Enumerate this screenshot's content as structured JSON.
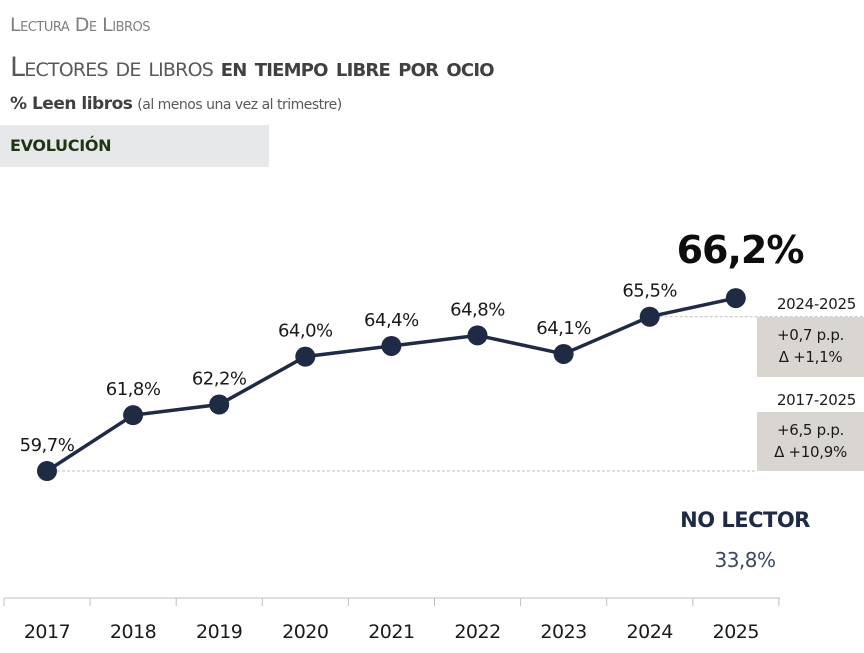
{
  "header": {
    "kicker": "Lectura De Libros",
    "title_light": "Lectores de libros",
    "title_bold": "en tiempo libre por ocio",
    "subtitle_bold": "% Leen libros",
    "subtitle_note": "(al menos una vez al trimestre)",
    "section": "EVOLUCIÓN"
  },
  "chart_data": {
    "type": "line",
    "title": "",
    "xlabel": "",
    "ylabel": "",
    "categories": [
      "2017",
      "2018",
      "2019",
      "2020",
      "2021",
      "2022",
      "2023",
      "2024",
      "2025"
    ],
    "values": [
      59.7,
      61.8,
      62.2,
      64.0,
      64.4,
      64.8,
      64.1,
      65.5,
      66.2
    ],
    "data_labels": [
      "59,7%",
      "61,8%",
      "62,2%",
      "64,0%",
      "64,4%",
      "64,8%",
      "64,1%",
      "65,5%",
      "66,2%"
    ],
    "highlight_label": "66,2%",
    "line_color": "#1f2a44",
    "grid": false
  },
  "comparisons": [
    {
      "period": "2024-2025",
      "pp": "+0,7 p.p.",
      "pct": "Δ +1,1%"
    },
    {
      "period": "2017-2025",
      "pp": "+6,5 p.p.",
      "pct": "Δ +10,9%"
    }
  ],
  "no_lector": {
    "label": "NO LECTOR",
    "value": "33,8%"
  }
}
